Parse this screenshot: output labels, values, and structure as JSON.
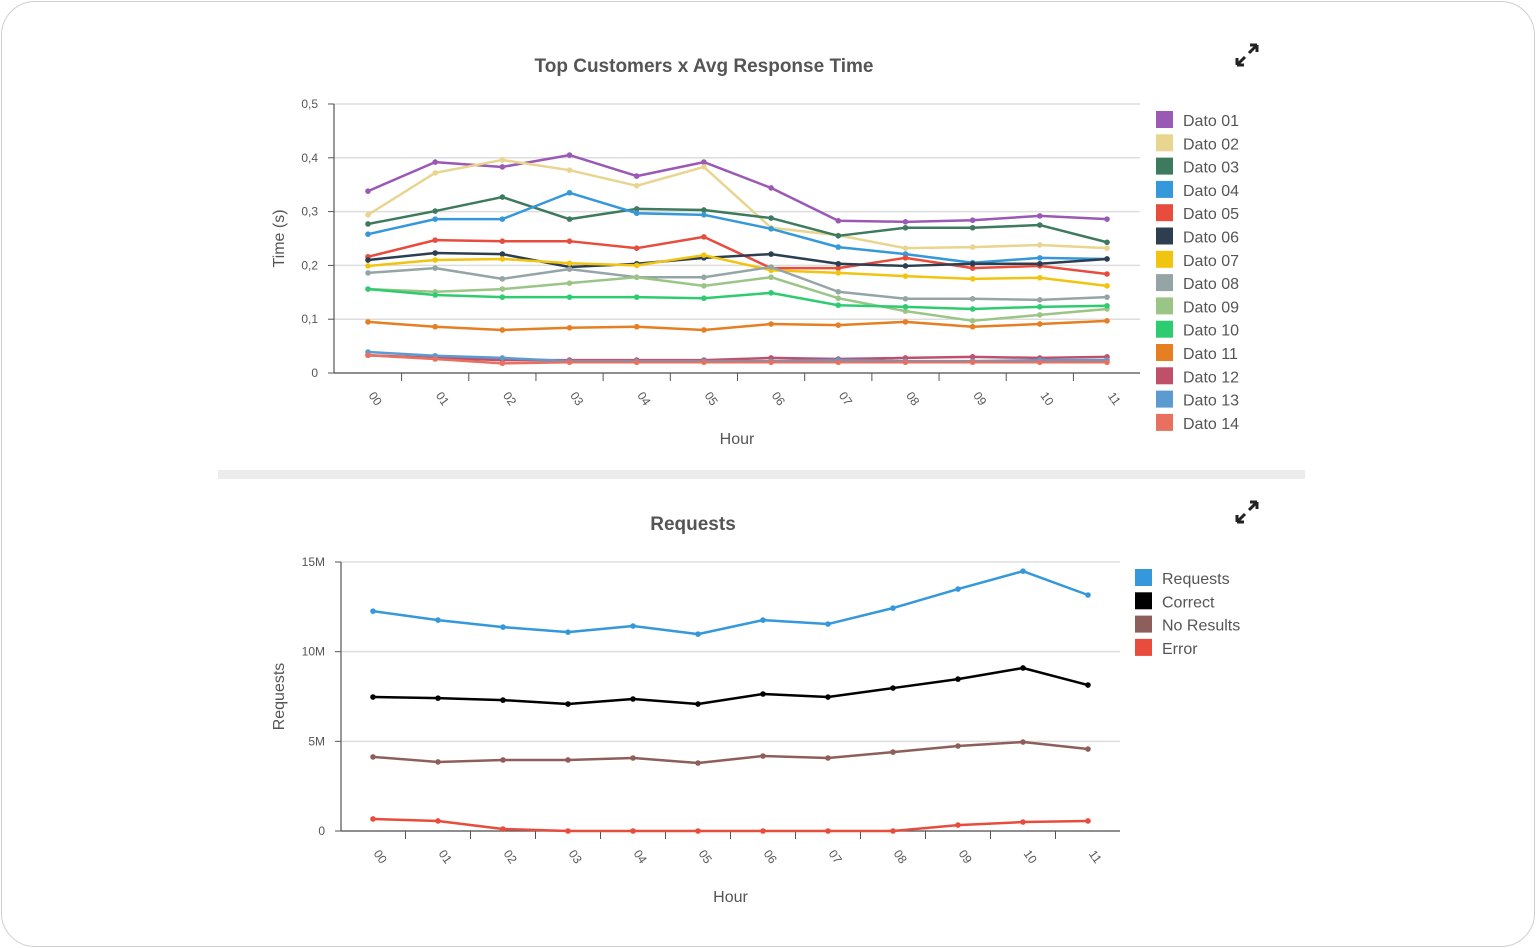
{
  "icons": {
    "expand": "expand-arrows-icon"
  },
  "chart_data": [
    {
      "type": "line",
      "title": "Top Customers x Avg Response Time",
      "xlabel": "Hour",
      "ylabel": "Time (s)",
      "ylim": [
        0,
        0.5
      ],
      "yticks": [
        0,
        0.1,
        0.2,
        0.3,
        0.4,
        0.5
      ],
      "ytick_labels": [
        "0",
        "0,1",
        "0,2",
        "0,3",
        "0,4",
        "0,5"
      ],
      "grid": true,
      "legend": "right",
      "categories": [
        "00",
        "01",
        "02",
        "03",
        "04",
        "05",
        "06",
        "07",
        "08",
        "09",
        "10",
        "11"
      ],
      "series": [
        {
          "name": "Dato 01",
          "color": "#9b59b6",
          "values": [
            0.338,
            0.392,
            0.383,
            0.405,
            0.366,
            0.392,
            0.344,
            0.283,
            0.281,
            0.284,
            0.292,
            0.286
          ]
        },
        {
          "name": "Dato 02",
          "color": "#e8d590",
          "values": [
            0.294,
            0.372,
            0.396,
            0.377,
            0.348,
            0.383,
            0.27,
            0.256,
            0.232,
            0.234,
            0.238,
            0.232
          ]
        },
        {
          "name": "Dato 03",
          "color": "#3d7a5e",
          "values": [
            0.277,
            0.301,
            0.327,
            0.286,
            0.305,
            0.303,
            0.288,
            0.255,
            0.27,
            0.27,
            0.275,
            0.243
          ]
        },
        {
          "name": "Dato 04",
          "color": "#3498db",
          "values": [
            0.258,
            0.286,
            0.286,
            0.335,
            0.297,
            0.294,
            0.268,
            0.234,
            0.221,
            0.205,
            0.214,
            0.212
          ]
        },
        {
          "name": "Dato 05",
          "color": "#e74c3c",
          "values": [
            0.216,
            0.247,
            0.245,
            0.245,
            0.232,
            0.253,
            0.195,
            0.195,
            0.214,
            0.195,
            0.199,
            0.184
          ]
        },
        {
          "name": "Dato 06",
          "color": "#2c3e50",
          "values": [
            0.21,
            0.223,
            0.221,
            0.197,
            0.203,
            0.214,
            0.221,
            0.203,
            0.199,
            0.203,
            0.203,
            0.212
          ]
        },
        {
          "name": "Dato 07",
          "color": "#f1c40f",
          "values": [
            0.199,
            0.21,
            0.212,
            0.204,
            0.2,
            0.219,
            0.191,
            0.186,
            0.18,
            0.175,
            0.177,
            0.162
          ]
        },
        {
          "name": "Dato 08",
          "color": "#95a5a6",
          "values": [
            0.186,
            0.195,
            0.175,
            0.193,
            0.178,
            0.178,
            0.197,
            0.151,
            0.138,
            0.138,
            0.136,
            0.141
          ]
        },
        {
          "name": "Dato 09",
          "color": "#9bc587",
          "values": [
            0.156,
            0.151,
            0.156,
            0.167,
            0.178,
            0.162,
            0.178,
            0.139,
            0.115,
            0.097,
            0.108,
            0.119
          ]
        },
        {
          "name": "Dato 10",
          "color": "#2ecc71",
          "values": [
            0.156,
            0.145,
            0.141,
            0.141,
            0.141,
            0.139,
            0.149,
            0.126,
            0.123,
            0.119,
            0.123,
            0.125
          ]
        },
        {
          "name": "Dato 11",
          "color": "#e67e22",
          "values": [
            0.095,
            0.086,
            0.08,
            0.084,
            0.086,
            0.08,
            0.091,
            0.089,
            0.095,
            0.086,
            0.091,
            0.097
          ]
        },
        {
          "name": "Dato 12",
          "color": "#c0506a",
          "values": [
            0.033,
            0.028,
            0.024,
            0.024,
            0.024,
            0.024,
            0.028,
            0.026,
            0.028,
            0.03,
            0.028,
            0.03
          ]
        },
        {
          "name": "Dato 13",
          "color": "#5b9bd0",
          "values": [
            0.039,
            0.032,
            0.028,
            0.022,
            0.022,
            0.022,
            0.022,
            0.024,
            0.022,
            0.022,
            0.024,
            0.024
          ]
        },
        {
          "name": "Dato 14",
          "color": "#e8705f",
          "values": [
            0.033,
            0.026,
            0.018,
            0.02,
            0.02,
            0.02,
            0.02,
            0.02,
            0.02,
            0.02,
            0.02,
            0.02
          ]
        }
      ]
    },
    {
      "type": "line",
      "title": "Requests",
      "xlabel": "Hour",
      "ylabel": "Requests",
      "ylim": [
        0,
        15000000
      ],
      "yticks": [
        0,
        5000000,
        10000000,
        15000000
      ],
      "ytick_labels": [
        "0",
        "5M",
        "10M",
        "15M"
      ],
      "grid": true,
      "legend": "right",
      "categories": [
        "00",
        "01",
        "02",
        "03",
        "04",
        "05",
        "06",
        "07",
        "08",
        "09",
        "10",
        "11"
      ],
      "series": [
        {
          "name": "Requests",
          "color": "#3498db",
          "values": [
            12260000,
            11760000,
            11370000,
            11090000,
            11430000,
            10980000,
            11760000,
            11540000,
            12430000,
            13490000,
            14490000,
            13160000
          ]
        },
        {
          "name": "Correct",
          "color": "#000000",
          "values": [
            7470000,
            7410000,
            7300000,
            7080000,
            7360000,
            7080000,
            7640000,
            7470000,
            7970000,
            8470000,
            9090000,
            8140000
          ]
        },
        {
          "name": "No Results",
          "color": "#8e5f5a",
          "values": [
            4130000,
            3850000,
            3960000,
            3960000,
            4070000,
            3790000,
            4180000,
            4070000,
            4400000,
            4740000,
            4960000,
            4570000
          ]
        },
        {
          "name": "Error",
          "color": "#e74c3c",
          "values": [
            670000,
            560000,
            110000,
            0,
            0,
            0,
            0,
            0,
            0,
            330000,
            500000,
            560000
          ]
        }
      ]
    }
  ]
}
